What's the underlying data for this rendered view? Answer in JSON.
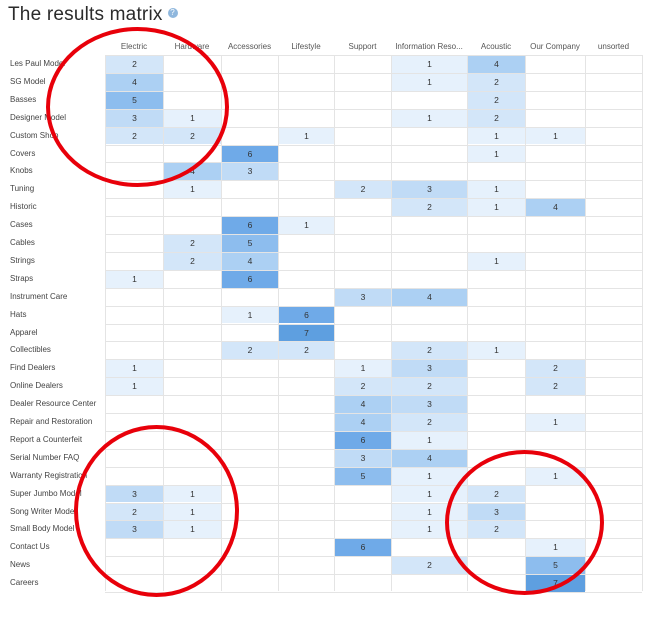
{
  "title": "The results matrix",
  "icons": {
    "help": "help-circle-icon"
  },
  "colors": {
    "annotation": "#e8000a",
    "accent": "#5e9fe0"
  },
  "columns": [
    "Electric",
    "Hardware",
    "Accessories",
    "Lifestyle",
    "Support",
    "Information Reso...",
    "Acoustic",
    "Our Company",
    "unsorted"
  ],
  "rows": [
    {
      "label": "Les Paul Model",
      "cells": [
        2,
        null,
        null,
        null,
        null,
        1,
        4,
        null,
        null
      ]
    },
    {
      "label": "SG Model",
      "cells": [
        4,
        null,
        null,
        null,
        null,
        1,
        2,
        null,
        null
      ]
    },
    {
      "label": "Basses",
      "cells": [
        5,
        null,
        null,
        null,
        null,
        null,
        2,
        null,
        null
      ]
    },
    {
      "label": "Designer Model",
      "cells": [
        3,
        1,
        null,
        null,
        null,
        1,
        2,
        null,
        null
      ]
    },
    {
      "label": "Custom Shop",
      "cells": [
        2,
        2,
        null,
        1,
        null,
        null,
        1,
        1,
        null
      ]
    },
    {
      "label": "Covers",
      "cells": [
        null,
        null,
        6,
        null,
        null,
        null,
        1,
        null,
        null
      ]
    },
    {
      "label": "Knobs",
      "cells": [
        null,
        4,
        3,
        null,
        null,
        null,
        null,
        null,
        null
      ]
    },
    {
      "label": "Tuning",
      "cells": [
        null,
        1,
        null,
        null,
        2,
        3,
        1,
        null,
        null
      ]
    },
    {
      "label": "Historic",
      "cells": [
        null,
        null,
        null,
        null,
        null,
        2,
        1,
        4,
        null
      ]
    },
    {
      "label": "Cases",
      "cells": [
        null,
        null,
        6,
        1,
        null,
        null,
        null,
        null,
        null
      ]
    },
    {
      "label": "Cables",
      "cells": [
        null,
        2,
        5,
        null,
        null,
        null,
        null,
        null,
        null
      ]
    },
    {
      "label": "Strings",
      "cells": [
        null,
        2,
        4,
        null,
        null,
        null,
        1,
        null,
        null
      ]
    },
    {
      "label": "Straps",
      "cells": [
        1,
        null,
        6,
        null,
        null,
        null,
        null,
        null,
        null
      ]
    },
    {
      "label": "Instrument Care",
      "cells": [
        null,
        null,
        null,
        null,
        3,
        4,
        null,
        null,
        null
      ]
    },
    {
      "label": "Hats",
      "cells": [
        null,
        null,
        1,
        6,
        null,
        null,
        null,
        null,
        null
      ]
    },
    {
      "label": "Apparel",
      "cells": [
        null,
        null,
        null,
        7,
        null,
        null,
        null,
        null,
        null
      ]
    },
    {
      "label": "Collectibles",
      "cells": [
        null,
        null,
        2,
        2,
        null,
        2,
        1,
        null,
        null
      ]
    },
    {
      "label": "Find Dealers",
      "cells": [
        1,
        null,
        null,
        null,
        1,
        3,
        null,
        2,
        null
      ]
    },
    {
      "label": "Online Dealers",
      "cells": [
        1,
        null,
        null,
        null,
        2,
        2,
        null,
        2,
        null
      ]
    },
    {
      "label": "Dealer Resource Center",
      "cells": [
        null,
        null,
        null,
        null,
        4,
        3,
        null,
        null,
        null
      ]
    },
    {
      "label": "Repair and Restoration",
      "cells": [
        null,
        null,
        null,
        null,
        4,
        2,
        null,
        1,
        null
      ]
    },
    {
      "label": "Report a Counterfeit",
      "cells": [
        null,
        null,
        null,
        null,
        6,
        1,
        null,
        null,
        null
      ]
    },
    {
      "label": "Serial Number FAQ",
      "cells": [
        null,
        null,
        null,
        null,
        3,
        4,
        null,
        null,
        null
      ]
    },
    {
      "label": "Warranty Registration",
      "cells": [
        null,
        null,
        null,
        null,
        5,
        1,
        null,
        1,
        null
      ]
    },
    {
      "label": "Super Jumbo Model",
      "cells": [
        3,
        1,
        null,
        null,
        null,
        1,
        2,
        null,
        null
      ]
    },
    {
      "label": "Song Writer Model",
      "cells": [
        2,
        1,
        null,
        null,
        null,
        1,
        3,
        null,
        null
      ]
    },
    {
      "label": "Small Body Model",
      "cells": [
        3,
        1,
        null,
        null,
        null,
        1,
        2,
        null,
        null
      ]
    },
    {
      "label": "Contact Us",
      "cells": [
        null,
        null,
        null,
        null,
        6,
        null,
        null,
        1,
        null
      ]
    },
    {
      "label": "News",
      "cells": [
        null,
        null,
        null,
        null,
        null,
        2,
        null,
        5,
        null
      ]
    },
    {
      "label": "Careers",
      "cells": [
        null,
        null,
        null,
        null,
        null,
        null,
        null,
        7,
        null
      ]
    }
  ]
}
